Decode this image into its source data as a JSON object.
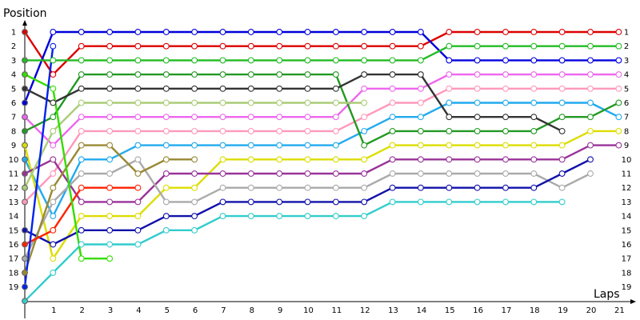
{
  "chart_data": {
    "type": "line",
    "ylabel": "Position",
    "xlabel": "Laps",
    "x_ticks": [
      1,
      2,
      3,
      4,
      5,
      6,
      7,
      8,
      9,
      10,
      11,
      12,
      13,
      14,
      15,
      16,
      17,
      18,
      19,
      20,
      21
    ],
    "y_ticks": [
      1,
      2,
      3,
      4,
      5,
      6,
      7,
      8,
      9,
      10,
      11,
      12,
      13,
      14,
      15,
      16,
      17,
      18,
      19
    ],
    "xlim": [
      0,
      22
    ],
    "ylim": [
      19,
      1
    ],
    "grid": false,
    "legend": "none",
    "series": [
      {
        "color": "#dd0000",
        "values": [
          1,
          4,
          2,
          2,
          2,
          2,
          2,
          2,
          2,
          2,
          2,
          2,
          2,
          2,
          2,
          1,
          1,
          1,
          1,
          1,
          1,
          1
        ]
      },
      {
        "color": "#0000dd",
        "values": [
          6,
          1,
          1,
          1,
          1,
          1,
          1,
          1,
          1,
          1,
          1,
          1,
          1,
          1,
          1,
          3,
          3,
          3,
          3,
          3,
          3,
          3
        ]
      },
      {
        "color": "#22bb22",
        "values": [
          3,
          3,
          3,
          3,
          3,
          3,
          3,
          3,
          3,
          3,
          3,
          3,
          3,
          3,
          3,
          2,
          2,
          2,
          2,
          2,
          2,
          2
        ]
      },
      {
        "color": "#ee66ee",
        "values": [
          7,
          9,
          7,
          7,
          7,
          7,
          7,
          7,
          7,
          7,
          7,
          7,
          5,
          5,
          5,
          4,
          4,
          4,
          4,
          4,
          4,
          4
        ]
      },
      {
        "color": "#ff99bb",
        "values": [
          13,
          11,
          8,
          8,
          8,
          8,
          8,
          8,
          8,
          8,
          8,
          8,
          7,
          6,
          6,
          5,
          5,
          5,
          5,
          5,
          5,
          5
        ]
      },
      {
        "color": "#22aaee",
        "values": [
          10,
          14,
          10,
          10,
          9,
          9,
          9,
          9,
          9,
          9,
          9,
          9,
          8,
          7,
          7,
          6,
          6,
          6,
          6,
          6,
          6,
          7
        ]
      },
      {
        "color": "#229922",
        "values": [
          8,
          7,
          4,
          4,
          4,
          4,
          4,
          4,
          4,
          4,
          4,
          4,
          9,
          8,
          8,
          8,
          8,
          8,
          8,
          7,
          7,
          6
        ]
      },
      {
        "color": "#dddd00",
        "values": [
          9,
          17,
          14,
          14,
          14,
          12,
          12,
          10,
          10,
          10,
          10,
          10,
          10,
          9,
          9,
          9,
          9,
          9,
          9,
          9,
          8,
          8
        ]
      },
      {
        "color": "#993399",
        "values": [
          11,
          10,
          13,
          13,
          13,
          11,
          11,
          11,
          11,
          11,
          11,
          11,
          11,
          10,
          10,
          10,
          10,
          10,
          10,
          10,
          9,
          9
        ]
      },
      {
        "color": "#333333",
        "values": [
          5,
          6,
          5,
          5,
          5,
          5,
          5,
          5,
          5,
          5,
          5,
          5,
          4,
          4,
          4,
          7,
          7,
          7,
          7,
          8
        ]
      },
      {
        "color": "#aaaaaa",
        "values": [
          17,
          13,
          11,
          11,
          10,
          13,
          13,
          12,
          12,
          12,
          12,
          12,
          12,
          11,
          11,
          11,
          11,
          11,
          11,
          12,
          11
        ]
      },
      {
        "color": "#1111aa",
        "values": [
          15,
          16,
          15,
          15,
          15,
          14,
          14,
          13,
          13,
          13,
          13,
          13,
          13,
          12,
          12,
          12,
          12,
          12,
          12,
          11,
          10
        ]
      },
      {
        "color": "#33cccc",
        "values": [
          20,
          18,
          16,
          16,
          16,
          15,
          15,
          14,
          14,
          14,
          14,
          14,
          14,
          13,
          13,
          13,
          13,
          13,
          13,
          13
        ]
      },
      {
        "color": "#aacc77",
        "values": [
          12,
          8,
          6,
          6,
          6,
          6,
          6,
          6,
          6,
          6,
          6,
          6,
          6
        ]
      },
      {
        "color": "#998833",
        "values": [
          18,
          12,
          9,
          9,
          11,
          10,
          10
        ]
      },
      {
        "color": "#ff2200",
        "values": [
          16,
          15,
          12,
          12,
          12
        ]
      },
      {
        "color": "#33dd00",
        "values": [
          4,
          5,
          17,
          17
        ]
      },
      {
        "color": "#0022ee",
        "values": [
          19,
          2
        ]
      }
    ]
  }
}
